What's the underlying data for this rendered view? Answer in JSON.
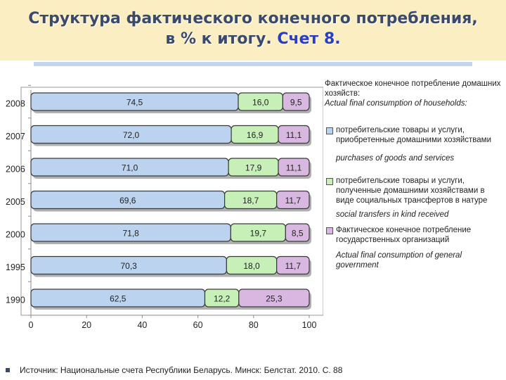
{
  "title": {
    "line1": "Структура фактического конечного потребления,",
    "line2_prefix": "в % к итогу.",
    "line2_accent": "Счет 8."
  },
  "chart_data": {
    "type": "bar",
    "orientation": "horizontal",
    "stacked": true,
    "categories": [
      "2008",
      "2007",
      "2006",
      "2005",
      "2000",
      "1995",
      "1990"
    ],
    "series": [
      {
        "name": "потребительские товары и услуги, приобретенные домашними хозяйствами",
        "color": "#bcd3f0",
        "values": [
          74.5,
          72.0,
          71.0,
          69.6,
          71.8,
          70.3,
          62.5
        ],
        "labels": [
          "74,5",
          "72,0",
          "71,0",
          "69,6",
          "71,8",
          "70,3",
          "62,5"
        ]
      },
      {
        "name": "потребительские товары и услуги, полученные домашними хозяйствами в виде социальных трансфертов в натуре",
        "color": "#c6f0b8",
        "values": [
          16.0,
          16.9,
          17.9,
          18.7,
          19.7,
          18.0,
          12.2
        ],
        "labels": [
          "16,0",
          "16,9",
          "17,9",
          "18,7",
          "19,7",
          "18,0",
          "12,2"
        ]
      },
      {
        "name": "Фактическое конечное потребление государственных организаций",
        "color": "#d8b8e0",
        "values": [
          9.5,
          11.1,
          11.1,
          11.7,
          8.5,
          11.7,
          25.3
        ],
        "labels": [
          "9,5",
          "11,1",
          "11,1",
          "11,7",
          "8,5",
          "11,7",
          "25,3"
        ]
      }
    ],
    "xlim": [
      0,
      100
    ],
    "xticks": [
      0,
      20,
      40,
      60,
      80,
      100
    ],
    "legend_position": "right"
  },
  "legend": {
    "group_title": "Фактическое конечное потребление домашних хозяйств:",
    "group_title_en": "Actual final consumption of households:",
    "items": [
      {
        "label": "потребительские товары и услуги, приобретенные домашними хозяйствами",
        "label_en": "purchases of goods and services",
        "color": "#bcd3f0"
      },
      {
        "label": "потребительские товары и услуги, полученные домашними хозяйствами в виде социальных трансфертов в натуре",
        "label_en": "social transfers in kind received",
        "color": "#c6f0b8"
      },
      {
        "label": "Фактическое конечное потребление государственных организаций",
        "label_en": "Actual final consumption of general government",
        "color": "#d8b8e0"
      }
    ]
  },
  "source": "Источник: Национальные счета Республики Беларусь. Минск: Белстат. 2010. С. 88"
}
